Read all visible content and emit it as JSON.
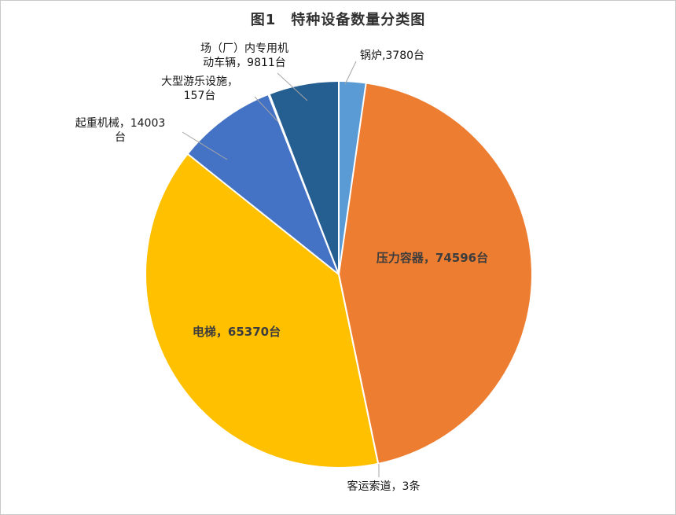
{
  "chart_data": {
    "type": "pie",
    "title": "图1　特种设备数量分类图",
    "start_angle_deg": 0,
    "direction": "clockwise",
    "legend": "none",
    "slices": [
      {
        "name": "锅炉",
        "value": 3780,
        "unit": "台",
        "label": "锅炉,3780台",
        "label_lines": [
          "锅炉,3780台"
        ],
        "color": "#5B9BD5",
        "label_placement": "outside"
      },
      {
        "name": "压力容器",
        "value": 74596,
        "unit": "台",
        "label": "压力容器，74596台",
        "label_lines": [
          "压力容器，74596台"
        ],
        "color": "#ED7D31",
        "label_placement": "inside"
      },
      {
        "name": "客运索道",
        "value": 3,
        "unit": "条",
        "label": "客运索道，3条",
        "label_lines": [
          "客运索道，3条"
        ],
        "color": "#A5A5A5",
        "label_placement": "outside"
      },
      {
        "name": "电梯",
        "value": 65370,
        "unit": "台",
        "label": "电梯，65370台",
        "label_lines": [
          "电梯，65370台"
        ],
        "color": "#FFC000",
        "label_placement": "inside"
      },
      {
        "name": "起重机械",
        "value": 14003,
        "unit": "台",
        "label": "起重机械，14003台",
        "label_lines": [
          "起重机械，14003",
          "台"
        ],
        "color": "#4472C4",
        "label_placement": "outside"
      },
      {
        "name": "大型游乐设施",
        "value": 157,
        "unit": "台",
        "label": "大型游乐设施，157台",
        "label_lines": [
          "大型游乐设施，",
          "157台"
        ],
        "color": "#70AD47",
        "label_placement": "outside"
      },
      {
        "name": "场（厂）内专用机动车辆",
        "value": 9811,
        "unit": "台",
        "label": "场（厂）内专用机动车辆，9811台",
        "label_lines": [
          "场（厂）内专用机",
          "动车辆，9811台"
        ],
        "color": "#255E91",
        "label_placement": "outside"
      }
    ],
    "colors": {
      "separator": "#ffffff",
      "leader_line": "#a6a6a6",
      "title_text": "#303030",
      "label_text": "#161616"
    }
  }
}
